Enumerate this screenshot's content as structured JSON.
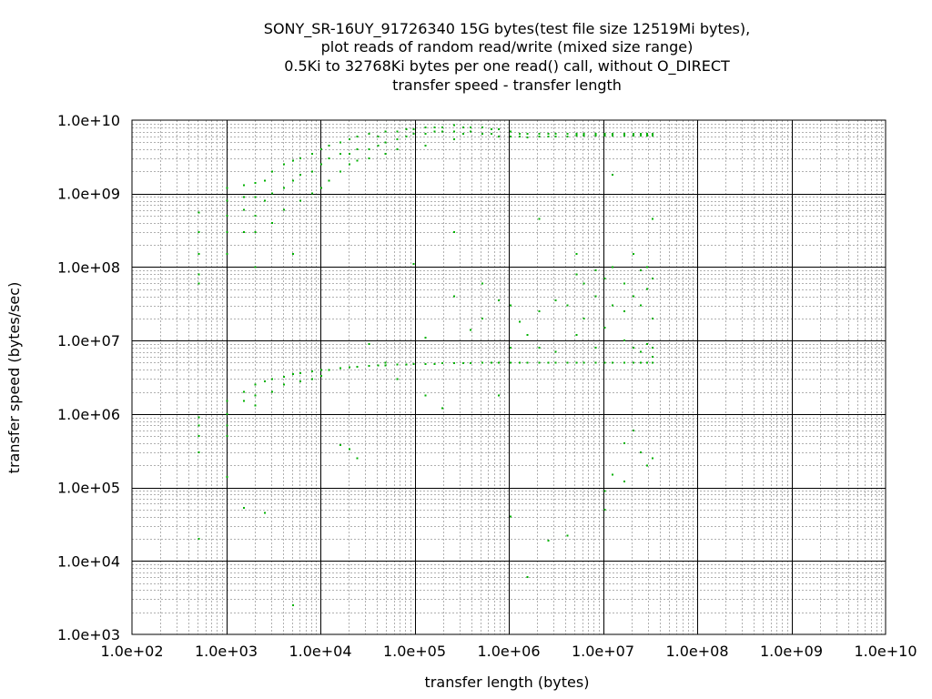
{
  "chart_data": {
    "type": "scatter",
    "title": [
      "SONY_SR-16UY_91726340 15G bytes(test file size 12519Mi bytes),",
      "plot reads of random read/write (mixed size range)",
      "0.5Ki to 32768Ki bytes per one read() call, without O_DIRECT",
      "transfer speed - transfer length"
    ],
    "xlabel": "transfer length (bytes)",
    "ylabel": "transfer speed (bytes/sec)",
    "xscale": "log",
    "yscale": "log",
    "xlim": [
      100,
      10000000000
    ],
    "ylim": [
      1000,
      10000000000
    ],
    "grid": true,
    "x_ticks": [
      "1.0e+02",
      "1.0e+03",
      "1.0e+04",
      "1.0e+05",
      "1.0e+06",
      "1.0e+07",
      "1.0e+08",
      "1.0e+09",
      "1.0e+10"
    ],
    "y_ticks": [
      "1.0e+03",
      "1.0e+04",
      "1.0e+05",
      "1.0e+06",
      "1.0e+07",
      "1.0e+08",
      "1.0e+09",
      "1.0e+10"
    ],
    "series": [
      {
        "color": "#00b000",
        "points": [
          [
            512,
            550000000
          ],
          [
            512,
            300000000
          ],
          [
            512,
            150000000
          ],
          [
            512,
            80000000
          ],
          [
            512,
            60000000
          ],
          [
            512,
            900000
          ],
          [
            512,
            700000
          ],
          [
            512,
            500000
          ],
          [
            512,
            300000
          ],
          [
            512,
            20000
          ],
          [
            1024,
            1200000000
          ],
          [
            1024,
            800000000
          ],
          [
            1024,
            500000000
          ],
          [
            1024,
            300000000
          ],
          [
            1024,
            150000000
          ],
          [
            1024,
            1500000
          ],
          [
            1024,
            1000000
          ],
          [
            1024,
            700000
          ],
          [
            1024,
            500000
          ],
          [
            1024,
            140000
          ],
          [
            1536,
            1300000000
          ],
          [
            1536,
            900000000
          ],
          [
            1536,
            600000000
          ],
          [
            1536,
            300000000
          ],
          [
            1536,
            2000000
          ],
          [
            1536,
            1500000
          ],
          [
            1536,
            53000
          ],
          [
            2048,
            1400000000
          ],
          [
            2048,
            900000000
          ],
          [
            2048,
            500000000
          ],
          [
            2048,
            300000000
          ],
          [
            2048,
            100000000
          ],
          [
            2048,
            2500000
          ],
          [
            2048,
            1800000
          ],
          [
            2048,
            1300000
          ],
          [
            2560,
            1500000000
          ],
          [
            2560,
            800000000
          ],
          [
            2560,
            2800000
          ],
          [
            2560,
            45000
          ],
          [
            3072,
            2000000000
          ],
          [
            3072,
            1000000000
          ],
          [
            3072,
            400000000
          ],
          [
            3072,
            3000000
          ],
          [
            3072,
            2000000
          ],
          [
            4096,
            2500000000
          ],
          [
            4096,
            1200000000
          ],
          [
            4096,
            600000000
          ],
          [
            4096,
            3200000
          ],
          [
            4096,
            2500000
          ],
          [
            5120,
            2800000000
          ],
          [
            5120,
            1500000000
          ],
          [
            5120,
            150000000
          ],
          [
            5120,
            3500000
          ],
          [
            5120,
            2500
          ],
          [
            6144,
            3000000000
          ],
          [
            6144,
            1800000000
          ],
          [
            6144,
            800000000
          ],
          [
            6144,
            3600000
          ],
          [
            6144,
            2800000
          ],
          [
            8192,
            3500000000
          ],
          [
            8192,
            2000000000
          ],
          [
            8192,
            1000000000
          ],
          [
            8192,
            3800000
          ],
          [
            8192,
            3000000
          ],
          [
            10240,
            4000000000
          ],
          [
            10240,
            2500000000
          ],
          [
            10240,
            1200000000
          ],
          [
            10240,
            4000000
          ],
          [
            10240,
            3300000
          ],
          [
            12288,
            4500000000
          ],
          [
            12288,
            3000000000
          ],
          [
            12288,
            1500000000
          ],
          [
            12288,
            4000000
          ],
          [
            16384,
            5000000000
          ],
          [
            16384,
            3500000000
          ],
          [
            16384,
            2000000000
          ],
          [
            16384,
            4200000
          ],
          [
            16384,
            380000
          ],
          [
            20480,
            5500000000
          ],
          [
            20480,
            3500000000
          ],
          [
            20480,
            2500000000
          ],
          [
            20480,
            4300000
          ],
          [
            20480,
            330000
          ],
          [
            24576,
            6000000000
          ],
          [
            24576,
            4000000000
          ],
          [
            24576,
            2800000000
          ],
          [
            24576,
            4400000
          ],
          [
            24576,
            250000
          ],
          [
            32768,
            6500000000
          ],
          [
            32768,
            4000000000
          ],
          [
            32768,
            3000000000
          ],
          [
            32768,
            4500000
          ],
          [
            32768,
            9000000
          ],
          [
            40960,
            6000000000
          ],
          [
            40960,
            4500000000
          ],
          [
            40960,
            4600000
          ],
          [
            49152,
            7000000000
          ],
          [
            49152,
            5000000000
          ],
          [
            49152,
            3500000000
          ],
          [
            49152,
            4600000
          ],
          [
            49152,
            5000000
          ],
          [
            65536,
            7000000000
          ],
          [
            65536,
            5500000000
          ],
          [
            65536,
            4000000000
          ],
          [
            65536,
            4700000
          ],
          [
            65536,
            3000000
          ],
          [
            81920,
            7500000000
          ],
          [
            81920,
            6000000000
          ],
          [
            81920,
            4700000
          ],
          [
            98304,
            7500000000
          ],
          [
            98304,
            6500000000
          ],
          [
            98304,
            4800000
          ],
          [
            98304,
            110000000
          ],
          [
            131072,
            8000000000
          ],
          [
            131072,
            6500000000
          ],
          [
            131072,
            4500000000
          ],
          [
            131072,
            4800000
          ],
          [
            131072,
            1800000
          ],
          [
            131072,
            11000000
          ],
          [
            163840,
            8000000000
          ],
          [
            163840,
            7000000000
          ],
          [
            163840,
            4800000
          ],
          [
            196608,
            8000000000
          ],
          [
            196608,
            7000000000
          ],
          [
            196608,
            4900000
          ],
          [
            196608,
            1200000
          ],
          [
            262144,
            8500000000
          ],
          [
            262144,
            7000000000
          ],
          [
            262144,
            5500000000
          ],
          [
            262144,
            4900000
          ],
          [
            262144,
            300000000
          ],
          [
            262144,
            40000000
          ],
          [
            327680,
            8000000000
          ],
          [
            327680,
            6500000000
          ],
          [
            327680,
            4900000
          ],
          [
            393216,
            8000000000
          ],
          [
            393216,
            7000000000
          ],
          [
            393216,
            4900000
          ],
          [
            393216,
            14000000
          ],
          [
            524288,
            8000000000
          ],
          [
            524288,
            6500000000
          ],
          [
            524288,
            5000000
          ],
          [
            524288,
            20000000
          ],
          [
            524288,
            60000000
          ],
          [
            655360,
            7500000000
          ],
          [
            655360,
            6500000000
          ],
          [
            655360,
            5000000
          ],
          [
            786432,
            7500000000
          ],
          [
            786432,
            6000000000
          ],
          [
            786432,
            5000000
          ],
          [
            786432,
            35000000
          ],
          [
            786432,
            1800000
          ],
          [
            1048576,
            7000000000
          ],
          [
            1048576,
            6000000000
          ],
          [
            1048576,
            5000000
          ],
          [
            1048576,
            30000000
          ],
          [
            1048576,
            8000000
          ],
          [
            1048576,
            40000
          ],
          [
            1310720,
            6500000000
          ],
          [
            1310720,
            6000000000
          ],
          [
            1310720,
            5000000
          ],
          [
            1310720,
            18000000
          ],
          [
            1572864,
            6500000000
          ],
          [
            1572864,
            5800000000
          ],
          [
            1572864,
            5000000
          ],
          [
            1572864,
            12000000
          ],
          [
            1572864,
            6000
          ],
          [
            2097152,
            6500000000
          ],
          [
            2097152,
            6000000000
          ],
          [
            2097152,
            5000000
          ],
          [
            2097152,
            450000000
          ],
          [
            2097152,
            25000000
          ],
          [
            2097152,
            8000000
          ],
          [
            2621440,
            6500000000
          ],
          [
            2621440,
            6000000000
          ],
          [
            2621440,
            5000000
          ],
          [
            2621440,
            19000
          ],
          [
            3145728,
            6500000000
          ],
          [
            3145728,
            6000000000
          ],
          [
            3145728,
            5000000
          ],
          [
            3145728,
            35000000
          ],
          [
            3145728,
            7000000
          ],
          [
            4194304,
            6500000000
          ],
          [
            4194304,
            6000000000
          ],
          [
            4194304,
            5000000
          ],
          [
            4194304,
            30000000
          ],
          [
            4194304,
            22000
          ],
          [
            5242880,
            6500000000
          ],
          [
            5242880,
            6200000000
          ],
          [
            5242880,
            5000000
          ],
          [
            5242880,
            80000000
          ],
          [
            5242880,
            12000000
          ],
          [
            5242880,
            150000000
          ],
          [
            6291456,
            6500000000
          ],
          [
            6291456,
            6200000000
          ],
          [
            6291456,
            5000000
          ],
          [
            6291456,
            60000000
          ],
          [
            6291456,
            20000000
          ],
          [
            8388608,
            6500000000
          ],
          [
            8388608,
            6200000000
          ],
          [
            8388608,
            5000000
          ],
          [
            8388608,
            90000000
          ],
          [
            8388608,
            40000000
          ],
          [
            8388608,
            8000000
          ],
          [
            10485760,
            6500000000
          ],
          [
            10485760,
            6200000000
          ],
          [
            10485760,
            5000000
          ],
          [
            10485760,
            70000000
          ],
          [
            10485760,
            15000000
          ],
          [
            10485760,
            90000
          ],
          [
            10485760,
            50000
          ],
          [
            12582912,
            6500000000
          ],
          [
            12582912,
            6200000000
          ],
          [
            12582912,
            5000000
          ],
          [
            12582912,
            1800000000
          ],
          [
            12582912,
            100000000
          ],
          [
            12582912,
            30000000
          ],
          [
            12582912,
            150000
          ],
          [
            16777216,
            6500000000
          ],
          [
            16777216,
            6200000000
          ],
          [
            16777216,
            5000000
          ],
          [
            16777216,
            60000000
          ],
          [
            16777216,
            25000000
          ],
          [
            16777216,
            10000000
          ],
          [
            16777216,
            400000
          ],
          [
            16777216,
            120000
          ],
          [
            20971520,
            6500000000
          ],
          [
            20971520,
            6200000000
          ],
          [
            20971520,
            5000000
          ],
          [
            20971520,
            150000000
          ],
          [
            20971520,
            40000000
          ],
          [
            20971520,
            8000000
          ],
          [
            20971520,
            600000
          ],
          [
            25165824,
            6500000000
          ],
          [
            25165824,
            6200000000
          ],
          [
            25165824,
            5000000
          ],
          [
            25165824,
            90000000
          ],
          [
            25165824,
            30000000
          ],
          [
            25165824,
            7000000
          ],
          [
            25165824,
            300000
          ],
          [
            29360128,
            6500000000
          ],
          [
            29360128,
            6200000000
          ],
          [
            29360128,
            5000000
          ],
          [
            29360128,
            100000000
          ],
          [
            29360128,
            50000000
          ],
          [
            29360128,
            9000000
          ],
          [
            29360128,
            200000
          ],
          [
            33554432,
            6500000000
          ],
          [
            33554432,
            6200000000
          ],
          [
            33554432,
            5000000
          ],
          [
            33554432,
            450000000
          ],
          [
            33554432,
            70000000
          ],
          [
            33554432,
            20000000
          ],
          [
            33554432,
            8000000
          ],
          [
            33554432,
            6000000
          ],
          [
            33554432,
            250000
          ]
        ]
      }
    ]
  }
}
